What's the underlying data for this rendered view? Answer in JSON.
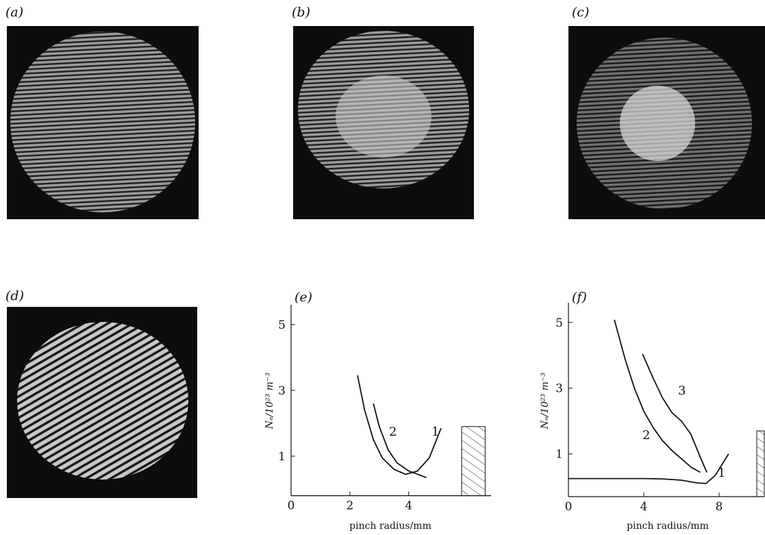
{
  "panels": [
    "(a)",
    "(b)",
    "(c)",
    "(d)"
  ],
  "chart_data": [
    {
      "type": "line",
      "title": "(e)",
      "x_label": "pinch radius/mm",
      "y_label": "Nₑ/10²³ m⁻³",
      "xlim": [
        0,
        6.8
      ],
      "ylim": [
        -0.2,
        5.6
      ],
      "xticks": [
        0,
        2,
        4
      ],
      "yticks": [
        1,
        3,
        5
      ],
      "series": [
        {
          "name": "1",
          "color": "#111111",
          "x": [
            2.26,
            2.5,
            2.8,
            3.1,
            3.5,
            3.9,
            4.3,
            4.7,
            5.1
          ],
          "values": [
            3.46,
            2.4,
            1.5,
            0.95,
            0.6,
            0.45,
            0.55,
            0.95,
            1.85
          ]
        },
        {
          "name": "2",
          "color": "#111111",
          "x": [
            2.8,
            3.0,
            3.3,
            3.6,
            4.0,
            4.4,
            4.6
          ],
          "values": [
            2.6,
            1.9,
            1.2,
            0.8,
            0.55,
            0.42,
            0.35
          ]
        }
      ]
    },
    {
      "type": "line",
      "title": "(f)",
      "x_label": "pinch radius/mm",
      "y_label": "Nₑ/10²³ m⁻³",
      "xlim": [
        0,
        10.4
      ],
      "ylim": [
        -0.3,
        5.6
      ],
      "xticks": [
        0,
        4,
        8
      ],
      "yticks": [
        1,
        3,
        5
      ],
      "series": [
        {
          "name": "1",
          "color": "#111111",
          "x": [
            0,
            2,
            4,
            5,
            6,
            6.8,
            7.3,
            7.8,
            8.5
          ],
          "values": [
            0.25,
            0.25,
            0.25,
            0.24,
            0.2,
            0.12,
            0.1,
            0.35,
            1.0
          ]
        },
        {
          "name": "2",
          "color": "#111111",
          "x": [
            2.44,
            3,
            3.5,
            4,
            4.5,
            5,
            5.5,
            6,
            6.5,
            7
          ],
          "values": [
            5.08,
            3.9,
            3.0,
            2.3,
            1.8,
            1.4,
            1.1,
            0.85,
            0.6,
            0.44
          ]
        },
        {
          "name": "3",
          "color": "#111111",
          "x": [
            3.93,
            4.5,
            5,
            5.5,
            6,
            6.5,
            7,
            7.35
          ],
          "values": [
            4.04,
            3.3,
            2.7,
            2.25,
            2.0,
            1.6,
            0.9,
            0.44
          ]
        }
      ]
    }
  ]
}
